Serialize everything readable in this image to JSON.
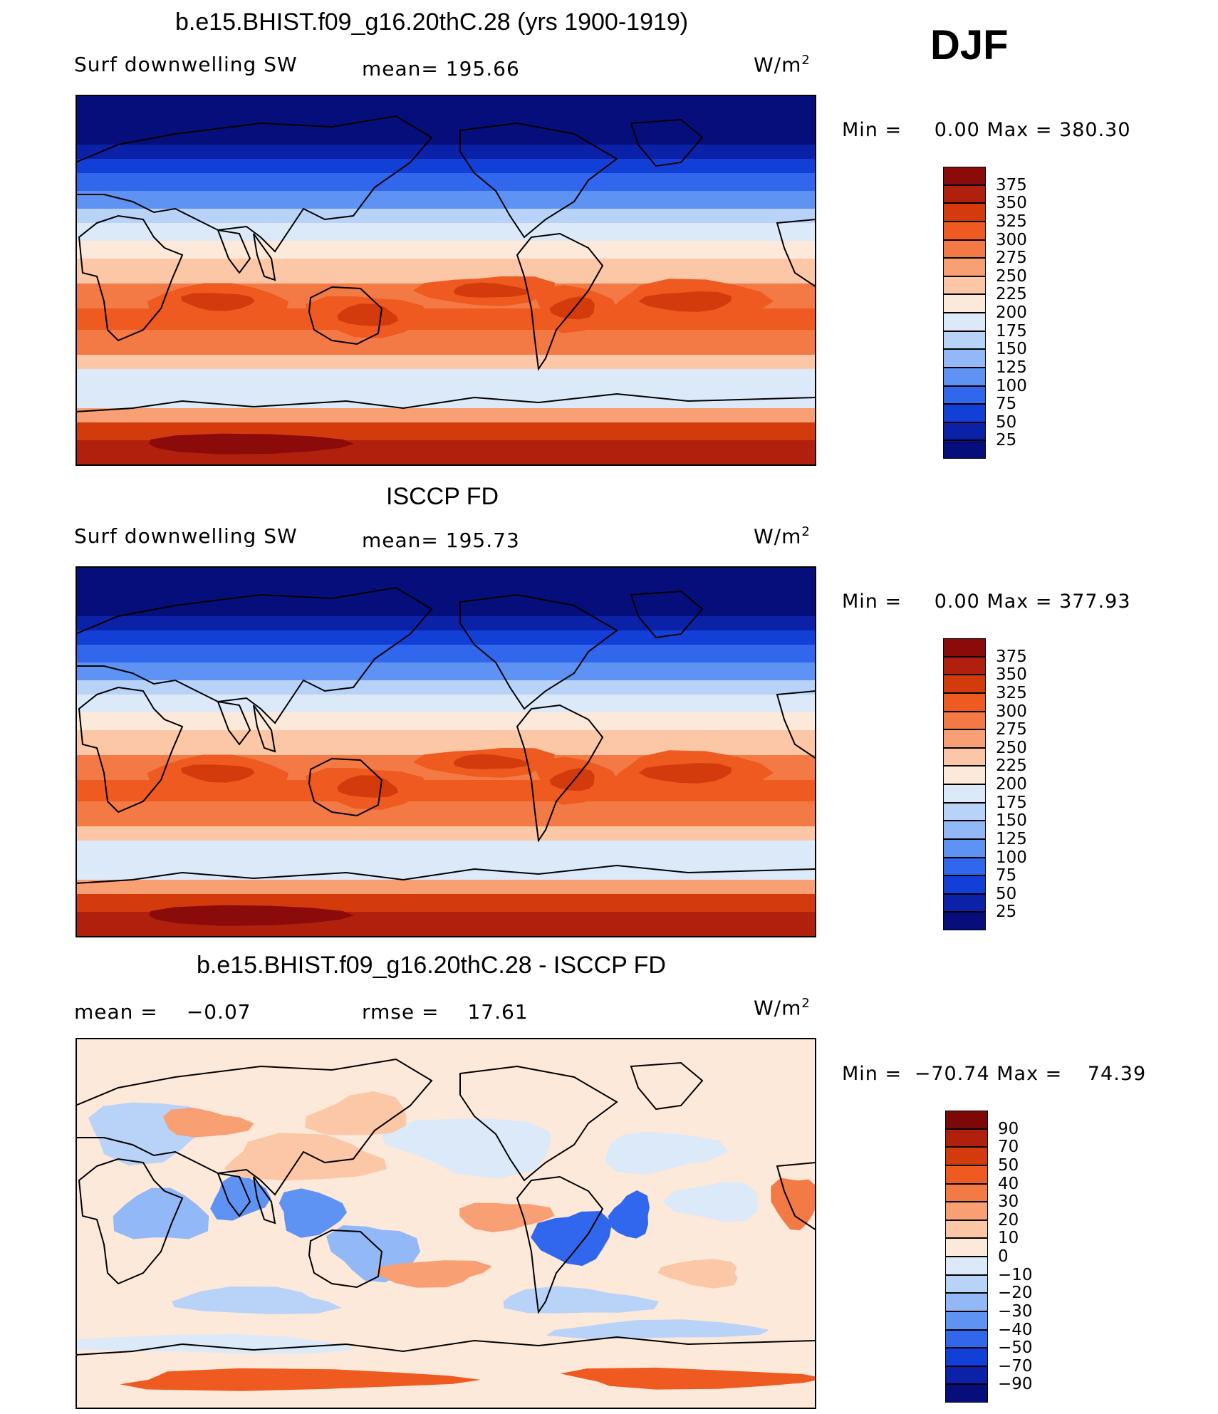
{
  "season": "DJF",
  "panels": [
    {
      "title": "b.e15.BHIST.f09_g16.20thC.28 (yrs 1900-1919)",
      "left_label": "Surf downwelling SW",
      "stat_label": "mean=",
      "stat_value": "195.66",
      "units_base": "W/m",
      "units_sup": "2",
      "min_label": "Min =",
      "min_value": "0.00",
      "max_label": "Max =",
      "max_value": "380.30",
      "colorbar": [
        "375",
        "350",
        "325",
        "300",
        "275",
        "250",
        "225",
        "200",
        "175",
        "150",
        "125",
        "100",
        "75",
        "50",
        "25"
      ]
    },
    {
      "title": "ISCCP FD",
      "left_label": "Surf downwelling SW",
      "stat_label": "mean=",
      "stat_value": "195.73",
      "units_base": "W/m",
      "units_sup": "2",
      "min_label": "Min =",
      "min_value": "0.00",
      "max_label": "Max =",
      "max_value": "377.93",
      "colorbar": [
        "375",
        "350",
        "325",
        "300",
        "275",
        "250",
        "225",
        "200",
        "175",
        "150",
        "125",
        "100",
        "75",
        "50",
        "25"
      ]
    },
    {
      "title": "b.e15.BHIST.f09_g16.20thC.28 - ISCCP FD",
      "mean_label": "mean =",
      "mean_value": "−0.07",
      "rmse_label": "rmse =",
      "rmse_value": "17.61",
      "units_base": "W/m",
      "units_sup": "2",
      "min_label": "Min =",
      "min_value": "−70.74",
      "max_label": "Max =",
      "max_value": "74.39",
      "colorbar": [
        "90",
        "70",
        "50",
        "40",
        "30",
        "20",
        "10",
        "0",
        "−10",
        "−20",
        "−30",
        "−40",
        "−50",
        "−70",
        "−90"
      ]
    }
  ],
  "colors": {
    "seq": [
      "#8b0a0a",
      "#b0200c",
      "#d33b0d",
      "#ee5a20",
      "#f47a45",
      "#f89f73",
      "#fbc7a6",
      "#fde9da",
      "#dbe9f9",
      "#b9d3f8",
      "#92b8f7",
      "#5f93f3",
      "#3067ec",
      "#123fd6",
      "#0b22a8",
      "#050e7a"
    ],
    "div": [
      "#7d0808",
      "#b0200c",
      "#d33b0d",
      "#ee5a20",
      "#f47a45",
      "#f89f73",
      "#fbc7a6",
      "#fde9da",
      "#dbe9f9",
      "#b9d3f8",
      "#92b8f7",
      "#5f93f3",
      "#3067ec",
      "#123fd6",
      "#0b22a8",
      "#050e7a"
    ],
    "land_line": "#000000"
  }
}
